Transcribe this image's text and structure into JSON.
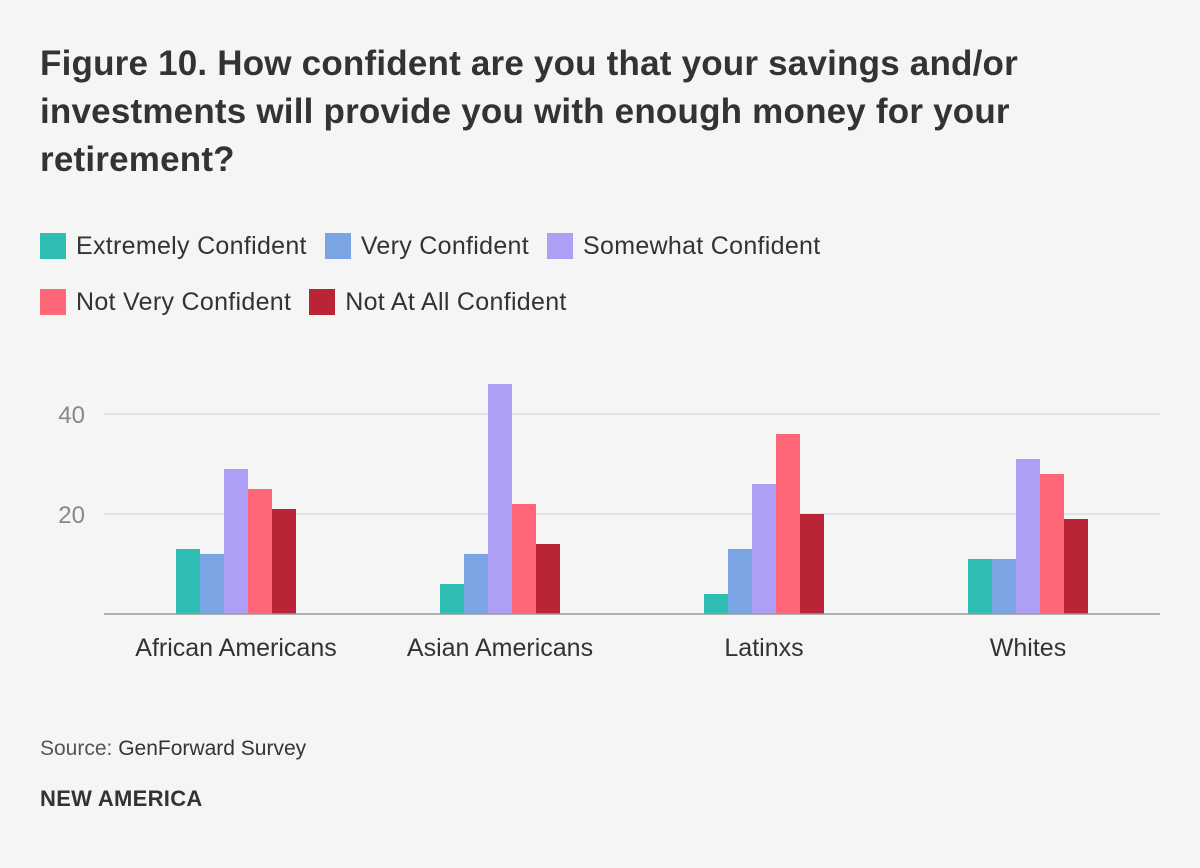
{
  "title": "Figure 10. How confident are you that your savings and/or investments will provide you with enough money for your retirement?",
  "source_label": "Source: ",
  "source_value": "GenForward Survey",
  "brand": "NEW AMERICA",
  "chart_data": {
    "type": "bar",
    "title": "Figure 10. How confident are you that your savings and/or investments will provide you with enough money for your retirement?",
    "categories": [
      "African Americans",
      "Asian Americans",
      "Latinxs",
      "Whites"
    ],
    "series": [
      {
        "name": "Extremely Confident",
        "color": "#2ebdb2",
        "values": [
          13,
          6,
          4,
          11
        ]
      },
      {
        "name": "Very Confident",
        "color": "#7ba4e5",
        "values": [
          12,
          12,
          13,
          11
        ]
      },
      {
        "name": "Somewhat Confident",
        "color": "#ac9ff5",
        "values": [
          29,
          46,
          26,
          31
        ]
      },
      {
        "name": "Not Very Confident",
        "color": "#ff6677",
        "values": [
          25,
          22,
          36,
          28
        ]
      },
      {
        "name": "Not At All Confident",
        "color": "#b92537",
        "values": [
          21,
          14,
          20,
          19
        ]
      }
    ],
    "yticks": [
      20,
      40
    ],
    "ylim": [
      0,
      46
    ],
    "grid": true,
    "legend_position": "top-left"
  }
}
